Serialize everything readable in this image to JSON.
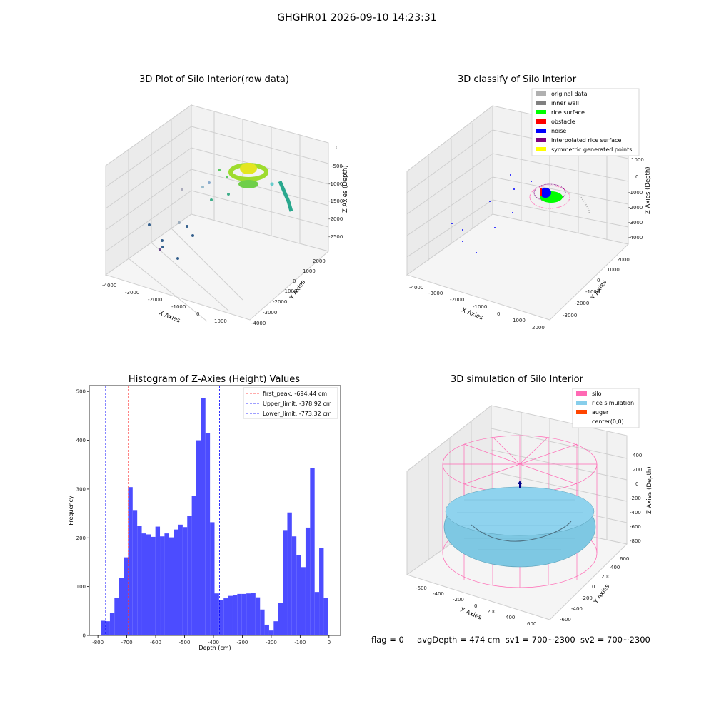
{
  "suptitle": "GHGHR01 2026-09-10 14:23:31",
  "footer": {
    "flag": "flag = 0",
    "avg": "avgDepth = 474 cm",
    "sv1": "sv1 = 700~2300",
    "sv2": "sv2 = 700~2300"
  },
  "chart_data": [
    {
      "type": "scatter",
      "title": "3D Plot of Silo Interior(row data)",
      "xlabel": "X Axies",
      "ylabel": "Y Axies",
      "zlabel": "Z Axies (Depth)",
      "x_ticks": [
        "-4000",
        "-3000",
        "-2000",
        "-1000",
        "0",
        "1000"
      ],
      "y_ticks": [
        "-4000",
        "-3000",
        "-2000",
        "-1000",
        "0",
        "1000",
        "2000"
      ],
      "z_ticks": [
        "0",
        "-500",
        "-1000",
        "-1500",
        "-2000",
        "-2500"
      ]
    },
    {
      "type": "scatter",
      "title": "3D classify of Silo Interior",
      "xlabel": "X Axies",
      "ylabel": "Y Axies",
      "zlabel": "Z Axies (Depth)",
      "x_ticks": [
        "-4000",
        "-3000",
        "-2000",
        "-1000",
        "0",
        "1000",
        "2000"
      ],
      "y_ticks": [
        "-3000",
        "-2000",
        "-1000",
        "0",
        "1000",
        "2000"
      ],
      "z_ticks": [
        "1000",
        "0",
        "-1000",
        "-2000",
        "-3000",
        "-4000"
      ],
      "legend": [
        {
          "label": "original data",
          "color": "#b0b0b0"
        },
        {
          "label": "inner wall",
          "color": "#808080"
        },
        {
          "label": "rice surface",
          "color": "#00ff00"
        },
        {
          "label": "obstacle",
          "color": "#ff0000"
        },
        {
          "label": "noise",
          "color": "#0000ff"
        },
        {
          "label": "interpolated rice surface",
          "color": "#800080"
        },
        {
          "label": "symmetric generated points",
          "color": "#ffff00"
        }
      ],
      "legend_loc": "top-right"
    },
    {
      "type": "bar",
      "title": "Histogram of Z-Axies (Height) Values",
      "xlabel": "Depth (cm)",
      "ylabel": "Frequency",
      "xlim": [
        -830,
        40
      ],
      "ylim": [
        0,
        512
      ],
      "x_ticks": [
        -800,
        -700,
        -600,
        -500,
        -400,
        -300,
        -200,
        -100,
        0
      ],
      "y_ticks": [
        0,
        100,
        200,
        300,
        400,
        500
      ],
      "bin_start": -790,
      "bin_width": 15.75,
      "values": [
        30,
        29,
        46,
        77,
        118,
        160,
        304,
        257,
        224,
        209,
        207,
        202,
        223,
        203,
        209,
        201,
        217,
        227,
        222,
        245,
        286,
        400,
        487,
        415,
        232,
        86,
        73,
        76,
        81,
        83,
        85,
        85,
        86,
        87,
        78,
        53,
        22,
        10,
        29,
        67,
        216,
        252,
        203,
        165,
        140,
        221,
        343,
        89,
        179,
        77
      ],
      "bar_color": "#4c4cff",
      "vlines": [
        {
          "label": "first_peak: -694.44 cm",
          "value": -694.44,
          "color": "#ff2020"
        },
        {
          "label": "Upper_limit: -378.92 cm",
          "value": -378.92,
          "color": "#0000ff"
        },
        {
          "label": "Lower_limit: -773.32 cm",
          "value": -773.32,
          "color": "#0000ff"
        }
      ],
      "legend_loc": "top-right"
    },
    {
      "type": "surface",
      "title": "3D simulation of Silo Interior",
      "xlabel": "X Axies",
      "ylabel": "Y Axies",
      "zlabel": "Z Axies (Depth)",
      "x_ticks": [
        "-600",
        "-400",
        "-200",
        "0",
        "200",
        "400",
        "600"
      ],
      "y_ticks": [
        "-600",
        "-400",
        "-200",
        "0",
        "200",
        "400",
        "600"
      ],
      "z_ticks": [
        "400",
        "200",
        "0",
        "-200",
        "-400",
        "-600",
        "-800"
      ],
      "legend": [
        {
          "label": "silo",
          "color": "#ff69b4"
        },
        {
          "label": "rice simulation",
          "color": "#87ceeb"
        },
        {
          "label": "auger",
          "color": "#ff4500"
        },
        {
          "label": "center(0,0)",
          "color": ""
        }
      ],
      "legend_loc": "top-right"
    }
  ]
}
